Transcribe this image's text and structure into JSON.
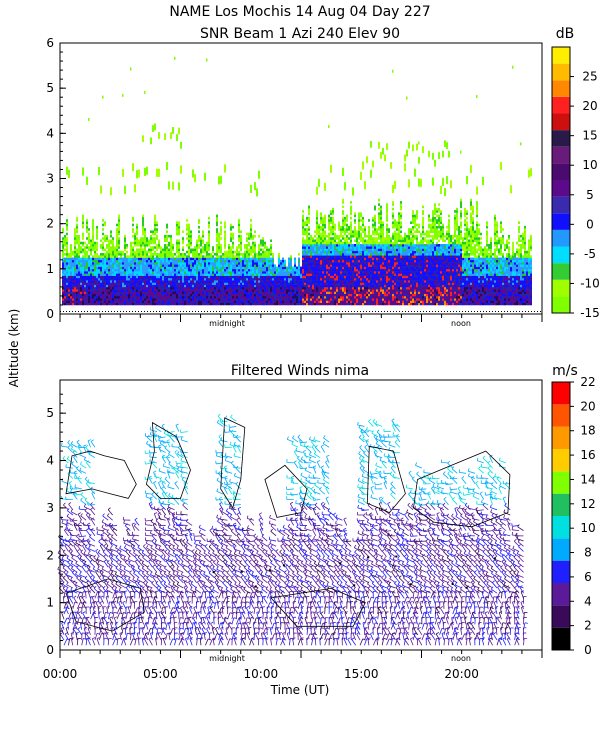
{
  "header": {
    "line1": "NAME Los Mochis   14 Aug 04 Day 227",
    "line2": "SNR Beam 1 Azi 240 Elev 90"
  },
  "shared": {
    "ylabel": "Altitude (km)",
    "xlabel": "Time (UT)",
    "marker_midnight": "midnight",
    "marker_noon": "noon"
  },
  "chart_data": [
    {
      "type": "heatmap",
      "title": "SNR Beam 1 Azi 240 Elev 90",
      "ylabel": "Altitude (km)",
      "xlim": [
        0,
        24
      ],
      "ylim": [
        0,
        6
      ],
      "yticks": [
        "0",
        "1",
        "2",
        "3",
        "4",
        "5",
        "6"
      ],
      "colorbar": {
        "unit": "dB",
        "ticks": [
          "25",
          "20",
          "15",
          "10",
          "5",
          "0",
          "-5",
          "-10",
          "-15"
        ],
        "colors": [
          "#7fff00",
          "#9fff00",
          "#33cc33",
          "#00ddff",
          "#2299ff",
          "#1010ff",
          "#3a2ab0",
          "#5a0a8a",
          "#4b0a6e",
          "#6a1a7a",
          "#2a1a4a",
          "#cc1010",
          "#ff2020",
          "#ff8800",
          "#ffbb00",
          "#ffee00"
        ],
        "min": -15,
        "max": 30
      },
      "layers": [
        {
          "band": [
            0.2,
            0.8
          ],
          "level": "high",
          "approx_db": 5
        },
        {
          "band": [
            0.8,
            1.3
          ],
          "level": "medium",
          "approx_db": -3
        },
        {
          "band": [
            1.3,
            2.2
          ],
          "level": "low",
          "approx_db": -10
        },
        {
          "band": [
            2.7,
            3.2
          ],
          "level": "sparse",
          "approx_db": -13
        }
      ]
    },
    {
      "type": "scatter",
      "title": "Filtered Winds nima",
      "ylabel": "Altitude (km)",
      "xlabel": "Time (UT)",
      "xlim": [
        0,
        24
      ],
      "ylim": [
        0,
        5.7
      ],
      "xticks": [
        "00:00",
        "05:00",
        "10:00",
        "15:00",
        "20:00"
      ],
      "yticks": [
        "0",
        "1",
        "2",
        "3",
        "4",
        "5"
      ],
      "colorbar": {
        "unit": "m/s",
        "ticks": [
          "22",
          "20",
          "18",
          "16",
          "14",
          "12",
          "10",
          "8",
          "6",
          "4",
          "2",
          "0"
        ],
        "colors": [
          "#000000",
          "#3a0a5a",
          "#5a1a9a",
          "#2020ff",
          "#00aaff",
          "#00e0e0",
          "#20c060",
          "#80ff00",
          "#ffcc00",
          "#ff9900",
          "#ff5500",
          "#ff0000"
        ],
        "min": 0,
        "max": 22
      },
      "speed_range_ms": [
        0,
        10
      ]
    }
  ]
}
